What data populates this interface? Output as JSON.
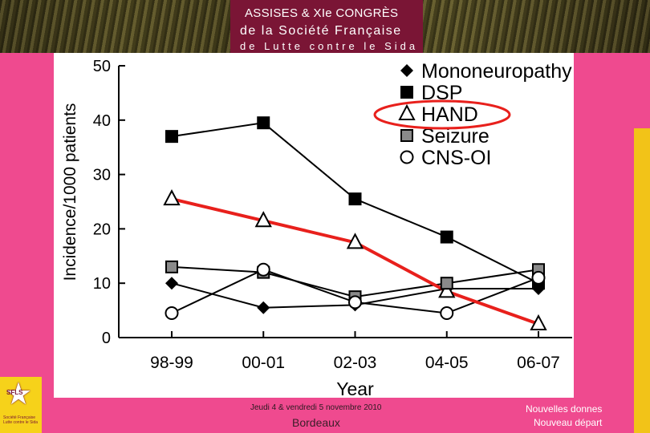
{
  "header": {
    "line1": "ASSISES  & XIe CONGRÈS",
    "line2": "de la Société Française",
    "line3": "de Lutte contre le Sida"
  },
  "logo": {
    "initials": "SFLS",
    "caption": "Société Française Lutte contre le Sida"
  },
  "footer": {
    "date": "Jeudi 4 & vendredi 5 novembre 2010",
    "city": "Bordeaux",
    "right1": "Nouvelles donnes",
    "right2": "Nouveau départ"
  },
  "colors": {
    "background": "#ef4a8f",
    "title_block": "#7a1535",
    "accent_red": "#e8201c",
    "highlight_yellow": "#f2c318"
  },
  "chart_data": {
    "type": "line",
    "title": "",
    "xlabel": "Year",
    "ylabel": "Incidence/1000 patients",
    "categories": [
      "98-99",
      "00-01",
      "02-03",
      "04-05",
      "06-07"
    ],
    "ylim": [
      0,
      50
    ],
    "yticks": [
      0,
      10,
      20,
      30,
      40,
      50
    ],
    "legend_position": "top-right",
    "series": [
      {
        "name": "Mononeuropathy",
        "marker": "diamond-filled",
        "values": [
          10,
          5.5,
          6,
          9,
          9
        ]
      },
      {
        "name": "DSP",
        "marker": "square-filled",
        "values": [
          37,
          39.5,
          25.5,
          18.5,
          10
        ]
      },
      {
        "name": "HAND",
        "marker": "triangle-open",
        "values": [
          25.5,
          21.5,
          17.5,
          8.5,
          2.5
        ]
      },
      {
        "name": "Seizure",
        "marker": "square-gray",
        "values": [
          13,
          12,
          7.5,
          10,
          12.5
        ]
      },
      {
        "name": "CNS-OI",
        "marker": "circle-open",
        "values": [
          4.5,
          12.5,
          6.5,
          4.5,
          11
        ]
      }
    ],
    "highlighted_series": "HAND"
  }
}
